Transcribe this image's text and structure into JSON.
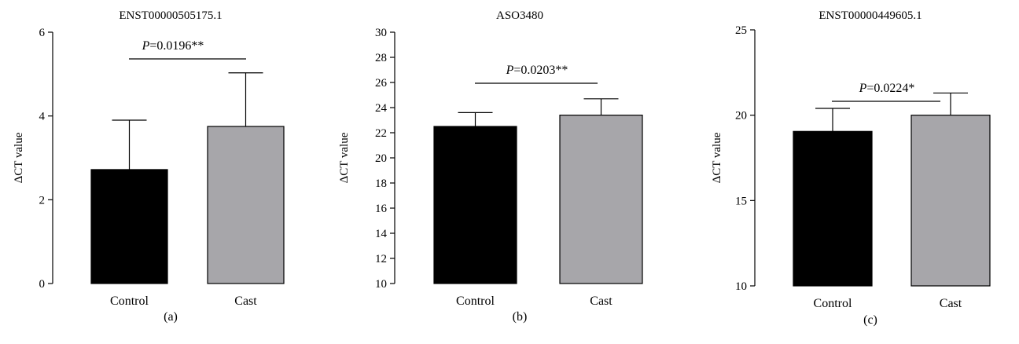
{
  "chart_data": [
    {
      "type": "bar",
      "title": "ENST00000505175.1",
      "ylabel": "ΔCT value",
      "categories": [
        "Control",
        "Cast"
      ],
      "values": [
        2.72,
        3.75
      ],
      "errors": [
        1.18,
        1.28
      ],
      "colors": [
        "#000000",
        "#a7a6aa"
      ],
      "ylim": [
        0,
        6
      ],
      "yticks": [
        0,
        2,
        4,
        6
      ],
      "annotation": {
        "p_label": "P",
        "p_text": "=0.0196**"
      },
      "panel_label": "(a)"
    },
    {
      "type": "bar",
      "title": "ASO3480",
      "ylabel": "ΔCT value",
      "categories": [
        "Control",
        "Cast"
      ],
      "values": [
        22.5,
        23.4
      ],
      "errors": [
        1.1,
        1.3
      ],
      "colors": [
        "#000000",
        "#a7a6aa"
      ],
      "ylim": [
        10,
        30
      ],
      "yticks": [
        10,
        12,
        14,
        16,
        18,
        20,
        22,
        24,
        26,
        28,
        30
      ],
      "annotation": {
        "p_label": "P",
        "p_text": "=0.0203**"
      },
      "panel_label": "(b)"
    },
    {
      "type": "bar",
      "title": "ENST00000449605.1",
      "ylabel": "ΔCT value",
      "categories": [
        "Control",
        "Cast"
      ],
      "values": [
        19.05,
        20.0
      ],
      "errors": [
        1.35,
        1.3
      ],
      "colors": [
        "#000000",
        "#a7a6aa"
      ],
      "ylim": [
        10,
        25
      ],
      "yticks": [
        10,
        15,
        20,
        25
      ],
      "annotation": {
        "p_label": "P",
        "p_text": "=0.0224*"
      },
      "panel_label": "(c)"
    }
  ]
}
